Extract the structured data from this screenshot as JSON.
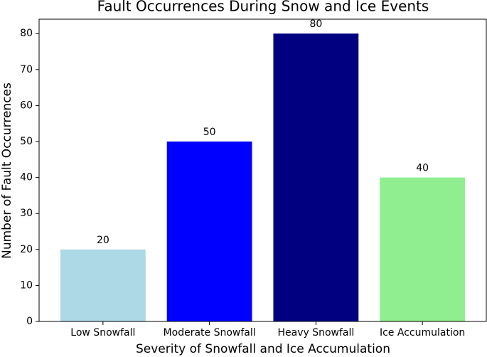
{
  "chart_data": {
    "type": "bar",
    "title": "Fault Occurrences During Snow and Ice Events",
    "x_label": "Severity of Snowfall and Ice Accumulation",
    "y_label": "Number of Fault Occurrences",
    "categories": [
      "Low Snowfall",
      "Moderate Snowfall",
      "Heavy Snowfall",
      "Ice Accumulation"
    ],
    "values": [
      20,
      50,
      80,
      40
    ],
    "colors": [
      "#add8e6",
      "#0000ff",
      "#000080",
      "#90ee90"
    ],
    "ylim": [
      0,
      84
    ],
    "yticks": [
      0,
      10,
      20,
      30,
      40,
      50,
      60,
      70,
      80
    ],
    "grid": false
  }
}
